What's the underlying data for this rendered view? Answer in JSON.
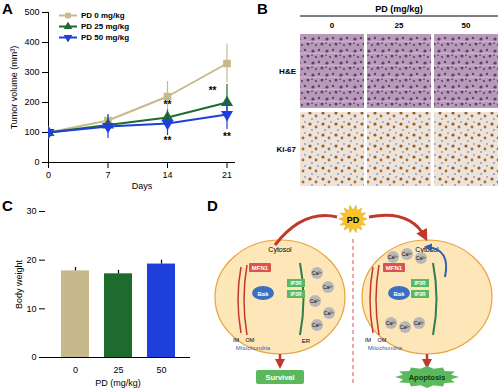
{
  "panel_labels": [
    "A",
    "B",
    "C",
    "D"
  ],
  "chart_data": [
    {
      "type": "line",
      "x": [
        0,
        7,
        14,
        21
      ],
      "xlim": [
        0,
        22
      ],
      "xticks": [
        0,
        7,
        14,
        21
      ],
      "ylim": [
        0,
        500
      ],
      "yticks": [
        0,
        100,
        200,
        300,
        400,
        500
      ],
      "x_label": "Days",
      "y_label": "Tumor volume (mm³)",
      "legend": "top-left",
      "grid": false,
      "series": [
        {
          "name": "PD 0 mg/kg",
          "color": "#c8b98c",
          "marker": "square",
          "values": [
            100,
            140,
            220,
            330
          ],
          "errors": [
            10,
            20,
            50,
            65
          ]
        },
        {
          "name": "PD 25 mg/kg",
          "color": "#1e6b2e",
          "marker": "triangle-up",
          "values": [
            100,
            125,
            150,
            200
          ],
          "errors": [
            10,
            20,
            25,
            60
          ]
        },
        {
          "name": "PD 50 mg/kg",
          "color": "#1f3fdc",
          "marker": "triangle-down",
          "values": [
            100,
            120,
            130,
            160
          ],
          "errors": [
            15,
            40,
            40,
            50
          ]
        }
      ],
      "annotations": [
        {
          "text": "**",
          "x": 14,
          "y": 192
        },
        {
          "text": "**",
          "x": 14,
          "y": 72
        },
        {
          "text": "**",
          "x": 19.3,
          "y": 238
        },
        {
          "text": "**",
          "x": 21,
          "y": 85
        }
      ]
    },
    {
      "type": "bar",
      "categories": [
        "0",
        "25",
        "50"
      ],
      "values": [
        17.8,
        17.2,
        19.2
      ],
      "errors": [
        0.7,
        0.7,
        0.8
      ],
      "colors": [
        "#c8b98c",
        "#1e6b2e",
        "#1f3fdc"
      ],
      "ylim": [
        0,
        30
      ],
      "yticks": [
        0,
        10,
        20,
        30
      ],
      "x_label": "PD (mg/kg)",
      "y_label": "Body weight",
      "grid": false
    }
  ],
  "histology": {
    "header": "PD (mg/kg)",
    "columns": [
      "0",
      "25",
      "50"
    ],
    "rows": [
      "H&E",
      "Ki-67"
    ]
  },
  "diagram": {
    "stimulus": "PD",
    "cells": [
      {
        "compartment": "Cytosol",
        "mitochondrion": "Mitochondria",
        "membranes": [
          "IM",
          "OM"
        ],
        "er": "ER",
        "mfn": "MFN1",
        "bak": "Bak",
        "ip3r": [
          "IP3R",
          "IP3R"
        ],
        "ions": [
          "Ca²⁺",
          "Ca²⁺",
          "Ca²⁺",
          "Ca²⁺",
          "Ca²⁺"
        ],
        "outcome": "Survival"
      },
      {
        "compartment": "Cytosol",
        "mitochondrion": "Mitochondria",
        "membranes": [
          "IM",
          "OM"
        ],
        "mfn": "MFN1",
        "bak": "Bak",
        "ip3r": [
          "IP3R",
          "IP3R"
        ],
        "ions": [
          "Ca²⁺",
          "Ca²⁺",
          "Ca²⁺",
          "Ca²⁺",
          "Ca²⁺",
          "Ca²⁺"
        ],
        "outcome": "Apoptosis"
      }
    ]
  }
}
